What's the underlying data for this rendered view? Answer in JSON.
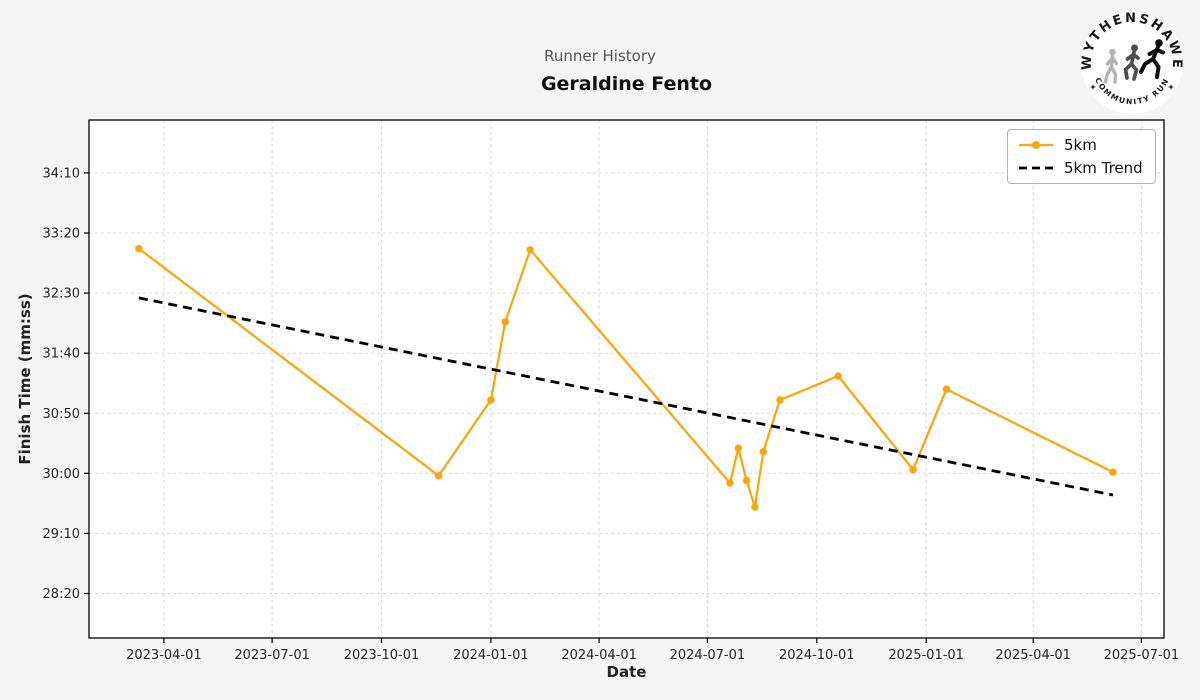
{
  "header": {
    "suptitle": "Runner History",
    "runner_name": "Geraldine Fento"
  },
  "logo": {
    "top_text": "WYTHENSHAWE",
    "bottom_text": "COMMUNITY RUN"
  },
  "legend": {
    "items": [
      {
        "label": "5km"
      },
      {
        "label": "5km Trend"
      }
    ]
  },
  "chart_data": {
    "type": "line",
    "title": "Runner History",
    "subtitle": "Geraldine Fento",
    "xlabel": "Date",
    "ylabel": "Finish Time (mm:ss)",
    "grid": true,
    "legend_position": "upper right",
    "x_domain": [
      "2023-01-28",
      "2025-07-20"
    ],
    "y_domain_seconds": [
      1663,
      2094
    ],
    "x_ticks": [
      "2023-04-01",
      "2023-07-01",
      "2023-10-01",
      "2024-01-01",
      "2024-04-01",
      "2024-07-01",
      "2024-10-01",
      "2025-01-01",
      "2025-04-01",
      "2025-07-01"
    ],
    "y_ticks": [
      "34:10",
      "33:20",
      "32:30",
      "31:40",
      "30:50",
      "30:00",
      "29:10",
      "28:20"
    ],
    "colors": {
      "series": "#FFA500",
      "trend": "#000000",
      "figure_bg": "#f5f5f5",
      "plot_bg": "#ffffff",
      "grid": "#d9d9d9"
    },
    "series": [
      {
        "name": "5km",
        "style": "solid-marker",
        "color": "#FFA500",
        "points": [
          {
            "date": "2023-03-11",
            "time": "33:07"
          },
          {
            "date": "2023-11-18",
            "time": "29:58"
          },
          {
            "date": "2024-01-01",
            "time": "31:01"
          },
          {
            "date": "2024-01-13",
            "time": "32:06"
          },
          {
            "date": "2024-02-03",
            "time": "33:06"
          },
          {
            "date": "2024-07-20",
            "time": "29:52"
          },
          {
            "date": "2024-07-27",
            "time": "30:21"
          },
          {
            "date": "2024-08-03",
            "time": "29:54"
          },
          {
            "date": "2024-08-10",
            "time": "29:32"
          },
          {
            "date": "2024-08-17",
            "time": "30:18"
          },
          {
            "date": "2024-08-31",
            "time": "31:01"
          },
          {
            "date": "2024-10-19",
            "time": "31:21"
          },
          {
            "date": "2024-12-21",
            "time": "30:03"
          },
          {
            "date": "2025-01-18",
            "time": "31:10"
          },
          {
            "date": "2025-06-07",
            "time": "30:01"
          }
        ]
      },
      {
        "name": "5km Trend",
        "style": "dashed",
        "color": "#000000",
        "points": [
          {
            "date": "2023-03-11",
            "time": "32:26"
          },
          {
            "date": "2025-06-07",
            "time": "29:42"
          }
        ]
      }
    ]
  }
}
